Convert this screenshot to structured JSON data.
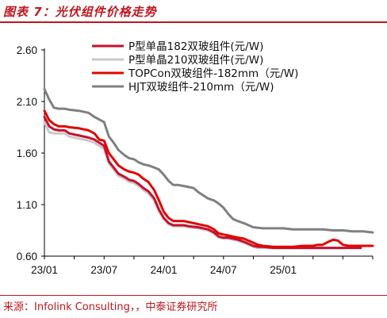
{
  "figure": {
    "title": "图表 7：光伏组件价格走势",
    "source": "来源：Infolink Consulting，，中泰证券研究所"
  },
  "colors": {
    "accent": "#c0161f"
  },
  "chart_data": {
    "type": "line",
    "xlabel": "",
    "ylabel": "",
    "ylim": [
      0.6,
      2.6
    ],
    "yticks": [
      "2.60",
      "2.10",
      "1.60",
      "1.10",
      "0.60"
    ],
    "xlim": [
      "2023-01",
      "2025-10"
    ],
    "xticks": [
      "23/01",
      "23/07",
      "24/01",
      "24/07",
      "25/01"
    ],
    "grid": false,
    "legend": "top-right",
    "series": [
      {
        "name": "P型单晶182双玻组件(元/W)",
        "color": "#c8102e",
        "points": [
          [
            2023.0,
            1.95
          ],
          [
            2023.04,
            1.86
          ],
          [
            2023.08,
            1.83
          ],
          [
            2023.12,
            1.82
          ],
          [
            2023.17,
            1.82
          ],
          [
            2023.21,
            1.79
          ],
          [
            2023.29,
            1.77
          ],
          [
            2023.37,
            1.75
          ],
          [
            2023.42,
            1.73
          ],
          [
            2023.5,
            1.67
          ],
          [
            2023.54,
            1.52
          ],
          [
            2023.58,
            1.46
          ],
          [
            2023.62,
            1.4
          ],
          [
            2023.67,
            1.37
          ],
          [
            2023.71,
            1.34
          ],
          [
            2023.75,
            1.33
          ],
          [
            2023.79,
            1.3
          ],
          [
            2023.83,
            1.26
          ],
          [
            2023.87,
            1.23
          ],
          [
            2023.92,
            1.16
          ],
          [
            2023.96,
            1.05
          ],
          [
            2024.0,
            0.97
          ],
          [
            2024.04,
            0.92
          ],
          [
            2024.08,
            0.9
          ],
          [
            2024.12,
            0.9
          ],
          [
            2024.17,
            0.9
          ],
          [
            2024.21,
            0.89
          ],
          [
            2024.29,
            0.88
          ],
          [
            2024.37,
            0.86
          ],
          [
            2024.42,
            0.83
          ],
          [
            2024.46,
            0.79
          ],
          [
            2024.5,
            0.78
          ],
          [
            2024.54,
            0.78
          ],
          [
            2024.58,
            0.77
          ],
          [
            2024.62,
            0.76
          ],
          [
            2024.67,
            0.74
          ],
          [
            2024.71,
            0.72
          ],
          [
            2024.75,
            0.7
          ],
          [
            2024.79,
            0.69
          ],
          [
            2024.83,
            0.69
          ],
          [
            2024.92,
            0.68
          ],
          [
            2025.0,
            0.68
          ],
          [
            2025.08,
            0.68
          ],
          [
            2025.17,
            0.68
          ],
          [
            2025.25,
            0.68
          ],
          [
            2025.33,
            0.68
          ],
          [
            2025.42,
            0.68
          ],
          [
            2025.5,
            0.68
          ],
          [
            2025.58,
            0.68
          ],
          [
            2025.65,
            0.68
          ]
        ]
      },
      {
        "name": "P型单晶210双玻组件(元/W)",
        "color": "#c9c9c9",
        "points": [
          [
            2023.0,
            1.9
          ],
          [
            2023.04,
            1.8
          ],
          [
            2023.08,
            1.79
          ],
          [
            2023.12,
            1.79
          ],
          [
            2023.17,
            1.79
          ],
          [
            2023.21,
            1.76
          ],
          [
            2023.29,
            1.74
          ],
          [
            2023.37,
            1.72
          ],
          [
            2023.42,
            1.7
          ],
          [
            2023.5,
            1.64
          ],
          [
            2023.54,
            1.5
          ],
          [
            2023.58,
            1.44
          ],
          [
            2023.62,
            1.38
          ],
          [
            2023.67,
            1.35
          ],
          [
            2023.71,
            1.32
          ],
          [
            2023.75,
            1.31
          ],
          [
            2023.79,
            1.28
          ],
          [
            2023.83,
            1.24
          ],
          [
            2023.87,
            1.21
          ],
          [
            2023.92,
            1.14
          ],
          [
            2023.96,
            1.04
          ],
          [
            2024.0,
            0.96
          ],
          [
            2024.04,
            0.91
          ],
          [
            2024.08,
            0.89
          ],
          [
            2024.12,
            0.89
          ],
          [
            2024.17,
            0.89
          ],
          [
            2024.21,
            0.88
          ],
          [
            2024.29,
            0.87
          ],
          [
            2024.37,
            0.85
          ],
          [
            2024.42,
            0.82
          ],
          [
            2024.46,
            0.78
          ],
          [
            2024.5,
            0.77
          ],
          [
            2024.54,
            0.77
          ],
          [
            2024.58,
            0.76
          ],
          [
            2024.62,
            0.75
          ],
          [
            2024.67,
            0.73
          ],
          [
            2024.71,
            0.71
          ],
          [
            2024.75,
            0.69
          ],
          [
            2024.79,
            0.68
          ],
          [
            2024.83,
            0.68
          ],
          [
            2024.92,
            0.68
          ],
          [
            2025.0,
            0.68
          ],
          [
            2025.08,
            0.68
          ],
          [
            2025.17,
            0.68
          ],
          [
            2025.25,
            0.68
          ],
          [
            2025.33,
            0.68
          ],
          [
            2025.42,
            0.68
          ],
          [
            2025.5,
            0.68
          ],
          [
            2025.58,
            0.68
          ],
          [
            2025.65,
            0.68
          ]
        ]
      },
      {
        "name": "TOPCon双玻组件-182mm（元/W)",
        "color": "#e10600",
        "points": [
          [
            2023.0,
            2.01
          ],
          [
            2023.04,
            1.92
          ],
          [
            2023.08,
            1.88
          ],
          [
            2023.12,
            1.86
          ],
          [
            2023.17,
            1.86
          ],
          [
            2023.21,
            1.85
          ],
          [
            2023.29,
            1.84
          ],
          [
            2023.37,
            1.82
          ],
          [
            2023.42,
            1.79
          ],
          [
            2023.46,
            1.73
          ],
          [
            2023.5,
            1.72
          ],
          [
            2023.54,
            1.6
          ],
          [
            2023.58,
            1.54
          ],
          [
            2023.62,
            1.48
          ],
          [
            2023.67,
            1.44
          ],
          [
            2023.71,
            1.42
          ],
          [
            2023.75,
            1.41
          ],
          [
            2023.79,
            1.39
          ],
          [
            2023.83,
            1.35
          ],
          [
            2023.87,
            1.32
          ],
          [
            2023.92,
            1.24
          ],
          [
            2023.96,
            1.14
          ],
          [
            2024.0,
            1.03
          ],
          [
            2024.04,
            0.97
          ],
          [
            2024.08,
            0.94
          ],
          [
            2024.12,
            0.94
          ],
          [
            2024.17,
            0.94
          ],
          [
            2024.21,
            0.93
          ],
          [
            2024.29,
            0.91
          ],
          [
            2024.37,
            0.89
          ],
          [
            2024.42,
            0.86
          ],
          [
            2024.46,
            0.82
          ],
          [
            2024.5,
            0.81
          ],
          [
            2024.54,
            0.8
          ],
          [
            2024.58,
            0.79
          ],
          [
            2024.62,
            0.78
          ],
          [
            2024.67,
            0.77
          ],
          [
            2024.71,
            0.75
          ],
          [
            2024.75,
            0.73
          ],
          [
            2024.79,
            0.71
          ],
          [
            2024.83,
            0.7
          ],
          [
            2024.92,
            0.69
          ],
          [
            2025.0,
            0.69
          ],
          [
            2025.08,
            0.69
          ],
          [
            2025.17,
            0.7
          ],
          [
            2025.25,
            0.7
          ],
          [
            2025.29,
            0.71
          ],
          [
            2025.33,
            0.71
          ],
          [
            2025.38,
            0.74
          ],
          [
            2025.42,
            0.76
          ],
          [
            2025.46,
            0.75
          ],
          [
            2025.5,
            0.71
          ],
          [
            2025.55,
            0.7
          ],
          [
            2025.65,
            0.7
          ],
          [
            2025.75,
            0.7
          ]
        ]
      },
      {
        "name": "HJT双玻组件-210mm（元/W)",
        "color": "#808080",
        "points": [
          [
            2023.0,
            2.22
          ],
          [
            2023.04,
            2.12
          ],
          [
            2023.08,
            2.04
          ],
          [
            2023.12,
            2.03
          ],
          [
            2023.17,
            2.03
          ],
          [
            2023.21,
            2.02
          ],
          [
            2023.29,
            2.01
          ],
          [
            2023.37,
            1.99
          ],
          [
            2023.42,
            1.95
          ],
          [
            2023.5,
            1.9
          ],
          [
            2023.54,
            1.76
          ],
          [
            2023.58,
            1.7
          ],
          [
            2023.62,
            1.63
          ],
          [
            2023.67,
            1.58
          ],
          [
            2023.71,
            1.55
          ],
          [
            2023.75,
            1.54
          ],
          [
            2023.79,
            1.51
          ],
          [
            2023.83,
            1.49
          ],
          [
            2023.87,
            1.48
          ],
          [
            2023.92,
            1.46
          ],
          [
            2023.96,
            1.44
          ],
          [
            2024.0,
            1.39
          ],
          [
            2024.04,
            1.33
          ],
          [
            2024.08,
            1.29
          ],
          [
            2024.12,
            1.29
          ],
          [
            2024.17,
            1.28
          ],
          [
            2024.21,
            1.27
          ],
          [
            2024.25,
            1.26
          ],
          [
            2024.29,
            1.22
          ],
          [
            2024.33,
            1.19
          ],
          [
            2024.37,
            1.16
          ],
          [
            2024.42,
            1.14
          ],
          [
            2024.46,
            1.11
          ],
          [
            2024.5,
            1.07
          ],
          [
            2024.54,
            1.01
          ],
          [
            2024.58,
            0.96
          ],
          [
            2024.62,
            0.94
          ],
          [
            2024.67,
            0.92
          ],
          [
            2024.71,
            0.9
          ],
          [
            2024.75,
            0.88
          ],
          [
            2024.83,
            0.87
          ],
          [
            2024.92,
            0.87
          ],
          [
            2025.0,
            0.87
          ],
          [
            2025.08,
            0.86
          ],
          [
            2025.17,
            0.86
          ],
          [
            2025.25,
            0.86
          ],
          [
            2025.33,
            0.86
          ],
          [
            2025.42,
            0.85
          ],
          [
            2025.5,
            0.85
          ],
          [
            2025.58,
            0.84
          ],
          [
            2025.67,
            0.84
          ],
          [
            2025.75,
            0.83
          ]
        ]
      }
    ]
  }
}
